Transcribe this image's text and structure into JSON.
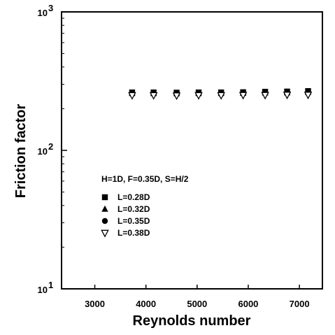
{
  "chart_data": {
    "type": "scatter",
    "xlabel": "Reynolds number",
    "ylabel": "Friction factor",
    "xscale": "linear",
    "yscale": "log",
    "xlim": [
      2350,
      7450
    ],
    "ylim": [
      10,
      1000
    ],
    "x_ticks": [
      3000,
      4000,
      5000,
      6000,
      7000
    ],
    "x_tick_labels": [
      "3000",
      "4000",
      "5000",
      "6000",
      "7000"
    ],
    "y_ticks": [
      10,
      100,
      1000
    ],
    "y_tick_labels": [
      {
        "base": "10",
        "exp": "1"
      },
      {
        "base": "10",
        "exp": "2"
      },
      {
        "base": "10",
        "exp": "3"
      }
    ],
    "grid": false,
    "legend_position": "lower-left",
    "annotation": "H=1D, F=0.35D, S=H/2",
    "series": [
      {
        "name": "L=0.28D",
        "marker": "square",
        "x": [
          3730,
          4150,
          4600,
          5030,
          5470,
          5900,
          6330,
          6760,
          7170
        ],
        "y": [
          262,
          262,
          261,
          262,
          262,
          263,
          265,
          266,
          268
        ]
      },
      {
        "name": "L=0.32D",
        "marker": "triangle",
        "x": [
          3730,
          4150,
          4600,
          5030,
          5470,
          5900,
          6330,
          6760,
          7170
        ],
        "y": [
          258,
          258,
          257,
          258,
          258,
          259,
          260,
          261,
          263
        ]
      },
      {
        "name": "L=0.35D",
        "marker": "circle",
        "x": [
          3730,
          4150,
          4600,
          5030,
          5470,
          5900,
          6330,
          6760,
          7170
        ],
        "y": [
          255,
          255,
          254,
          255,
          255,
          256,
          257,
          258,
          259
        ]
      },
      {
        "name": "L=0.38D",
        "marker": "triangle-down-open",
        "x": [
          3730,
          4150,
          4600,
          5030,
          5470,
          5900,
          6330,
          6760,
          7170
        ],
        "y": [
          250,
          250,
          249,
          250,
          250,
          251,
          251,
          252,
          252
        ]
      }
    ]
  }
}
